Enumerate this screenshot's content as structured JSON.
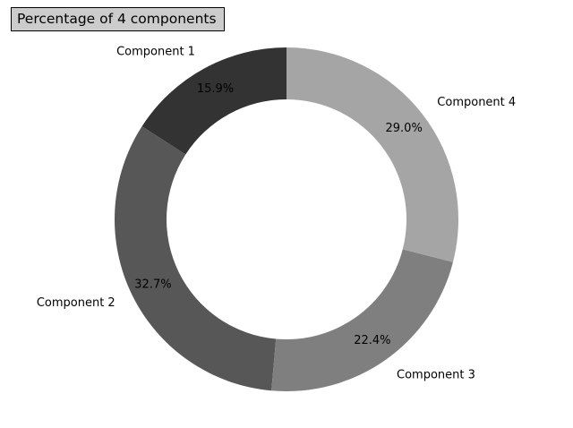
{
  "chart_data": {
    "type": "pie",
    "donut": true,
    "title": "Percentage of 4 components",
    "categories": [
      "Component 1",
      "Component 2",
      "Component 3",
      "Component 4"
    ],
    "values": [
      15.9,
      32.7,
      22.4,
      29.0
    ],
    "pct_labels": [
      "15.9%",
      "32.7%",
      "22.4%",
      "29.0%"
    ],
    "colors": [
      "#333333",
      "#575757",
      "#7f7f7f",
      "#a5a5a5"
    ],
    "start_angle_deg": 90,
    "direction": "counterclockwise"
  }
}
